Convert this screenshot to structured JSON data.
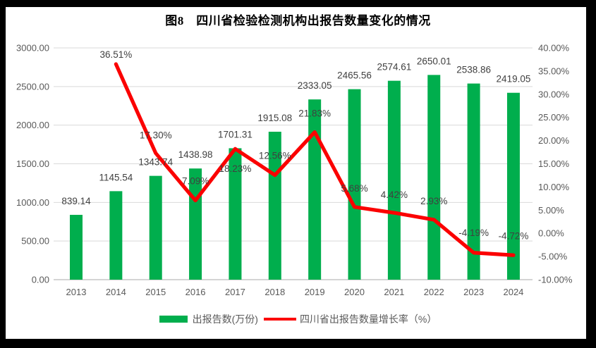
{
  "title": "图8　四川省检验检测机构出报告数量变化的情况",
  "legend": {
    "bars_label": "出报告数(万份)",
    "line_label": "四川省出报告数量增长率（%）"
  },
  "colors": {
    "bar": "#00AE4D",
    "line": "#FB0000",
    "grid": "#D9D9D9",
    "axis_line": "#C6C6C6",
    "axis_text": "#595959",
    "data_label_text": "#404040",
    "frame": "#000000",
    "background": "#FFFFFF"
  },
  "chart_data": {
    "type": "bar+line",
    "title": "图8　四川省检验检测机构出报告数量变化的情况",
    "categories": [
      "2013",
      "2014",
      "2015",
      "2016",
      "2017",
      "2018",
      "2019",
      "2020",
      "2021",
      "2022",
      "2023",
      "2024"
    ],
    "series": [
      {
        "name": "出报告数(万份)",
        "type": "bar",
        "axis": "left",
        "values": [
          839.14,
          1145.54,
          1343.74,
          1438.98,
          1701.31,
          1915.08,
          2333.05,
          2465.56,
          2574.61,
          2650.01,
          2538.86,
          2419.05
        ],
        "data_labels": [
          "839.14",
          "1145.54",
          "1343.74",
          "1438.98",
          "1701.31",
          "1915.08",
          "2333.05",
          "2465.56",
          "2574.61",
          "2650.01",
          "2538.86",
          "2419.05"
        ]
      },
      {
        "name": "四川省出报告数量增长率（%）",
        "type": "line",
        "axis": "right",
        "values": [
          null,
          36.51,
          17.3,
          7.09,
          18.23,
          12.56,
          21.83,
          5.68,
          4.42,
          2.93,
          -4.19,
          -4.72
        ],
        "data_labels": [
          null,
          "36.51%",
          "17.30%",
          "7.09%",
          "18.23%",
          "12.56%",
          "21.83%",
          "5.68%",
          "4.42%",
          "2.93%",
          "-4.19%",
          "-4.72%"
        ],
        "label_dy": [
          0,
          -9,
          -21,
          -23,
          33,
          -23,
          -22,
          -22,
          -21,
          -22,
          -24,
          -23
        ]
      }
    ],
    "left_axis": {
      "min": 0,
      "max": 3000,
      "step": 500,
      "tick_labels": [
        "0.00",
        "500.00",
        "1000.00",
        "1500.00",
        "2000.00",
        "2500.00",
        "3000.00"
      ]
    },
    "right_axis": {
      "min": -10,
      "max": 40,
      "step": 5,
      "tick_labels": [
        "-10.00%",
        "-5.00%",
        "0.00%",
        "5.00%",
        "10.00%",
        "15.00%",
        "20.00%",
        "25.00%",
        "30.00%",
        "35.00%",
        "40.00%"
      ]
    },
    "grid": "horizontal",
    "legend_position": "bottom"
  }
}
